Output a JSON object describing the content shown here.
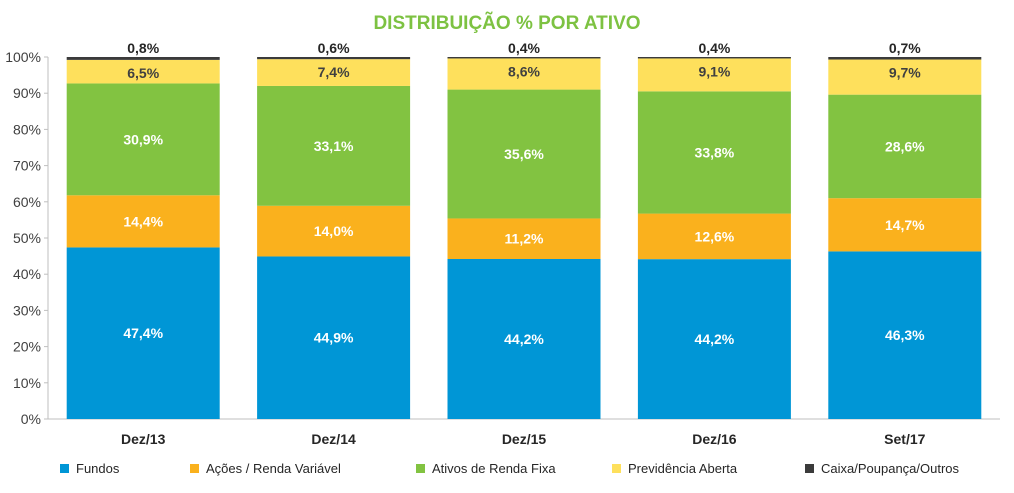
{
  "chart_data": {
    "type": "bar",
    "stacked": true,
    "title": "DISTRIBUIÇÃO % POR ATIVO",
    "title_color": "#7DC242",
    "categories": [
      "Dez/13",
      "Dez/14",
      "Dez/15",
      "Dez/16",
      "Set/17"
    ],
    "series": [
      {
        "name": "Fundos",
        "color": "#0096D6",
        "label_color": "#ffffff",
        "values": [
          47.4,
          44.9,
          44.2,
          44.2,
          46.3
        ],
        "labels": [
          "47,4%",
          "44,9%",
          "44,2%",
          "44,2%",
          "46,3%"
        ]
      },
      {
        "name": "Ações / Renda Variável",
        "color": "#FAB11D",
        "label_color": "#ffffff",
        "values": [
          14.4,
          14.0,
          11.2,
          12.6,
          14.7
        ],
        "labels": [
          "14,4%",
          "14,0%",
          "11,2%",
          "12,6%",
          "14,7%"
        ]
      },
      {
        "name": "Ativos de Renda Fixa",
        "color": "#82C341",
        "label_color": "#ffffff",
        "values": [
          30.9,
          33.1,
          35.6,
          33.8,
          28.6
        ],
        "labels": [
          "30,9%",
          "33,1%",
          "35,6%",
          "33,8%",
          "28,6%"
        ]
      },
      {
        "name": "Previdência Aberta",
        "color": "#FEE05C",
        "label_color": "#404040",
        "values": [
          6.5,
          7.4,
          8.6,
          9.1,
          9.7
        ],
        "labels": [
          "6,5%",
          "7,4%",
          "8,6%",
          "9,1%",
          "9,7%"
        ]
      },
      {
        "name": "Caixa/Poupança/Outros",
        "color": "#3B3B3B",
        "label_color": "#262626",
        "values": [
          0.8,
          0.6,
          0.4,
          0.4,
          0.7
        ],
        "labels": [
          "0,8%",
          "0,6%",
          "0,4%",
          "0,4%",
          "0,7%"
        ]
      }
    ],
    "ylim": [
      0,
      100
    ],
    "yticks": [
      "0%",
      "10%",
      "20%",
      "30%",
      "40%",
      "50%",
      "60%",
      "70%",
      "80%",
      "90%",
      "100%"
    ],
    "grid": false,
    "legend_position": "bottom"
  }
}
